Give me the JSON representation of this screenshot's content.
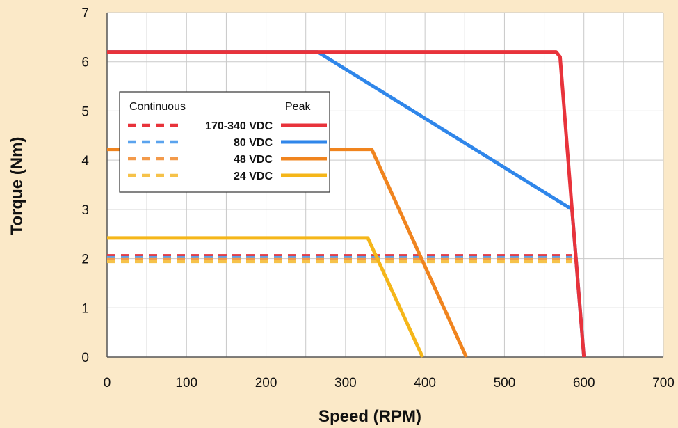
{
  "chart_data": {
    "type": "line",
    "xlabel": "Speed (RPM)",
    "ylabel": "Torque (Nm)",
    "xlim": [
      0,
      700
    ],
    "ylim": [
      0,
      7
    ],
    "x_ticks": [
      0,
      100,
      200,
      300,
      400,
      500,
      600,
      700
    ],
    "y_ticks": [
      0,
      1,
      2,
      3,
      4,
      5,
      6,
      7
    ],
    "grid": true,
    "legend": {
      "placement": "top-left",
      "continuous_header": "Continuous",
      "peak_header": "Peak"
    },
    "series": [
      {
        "name": "170-340 VDC",
        "kind": "peak",
        "color": "#e8333b",
        "points": [
          [
            0,
            6.2
          ],
          [
            565,
            6.2
          ],
          [
            570,
            6.1
          ],
          [
            585,
            3.0
          ],
          [
            600,
            0
          ]
        ]
      },
      {
        "name": "80 VDC",
        "kind": "peak",
        "color": "#2f86ea",
        "points": [
          [
            0,
            6.2
          ],
          [
            265,
            6.2
          ],
          [
            585,
            3.0
          ],
          [
            600,
            0
          ]
        ]
      },
      {
        "name": "48 VDC",
        "kind": "peak",
        "color": "#f0841e",
        "points": [
          [
            0,
            4.22
          ],
          [
            333,
            4.22
          ],
          [
            452,
            0
          ]
        ]
      },
      {
        "name": "24 VDC",
        "kind": "peak",
        "color": "#f5b619",
        "points": [
          [
            0,
            2.42
          ],
          [
            328,
            2.42
          ],
          [
            397,
            0
          ]
        ]
      },
      {
        "name": "170-340 VDC",
        "kind": "continuous",
        "color": "#e8333b",
        "points": [
          [
            0,
            2.06
          ],
          [
            585,
            2.06
          ]
        ]
      },
      {
        "name": "80 VDC",
        "kind": "continuous",
        "color": "#5aa3ee",
        "points": [
          [
            0,
            2.02
          ],
          [
            585,
            2.02
          ]
        ]
      },
      {
        "name": "48 VDC",
        "kind": "continuous",
        "color": "#f39a4a",
        "points": [
          [
            0,
            1.98
          ],
          [
            585,
            1.98
          ]
        ]
      },
      {
        "name": "24 VDC",
        "kind": "continuous",
        "color": "#f6c24a",
        "points": [
          [
            0,
            1.94
          ],
          [
            585,
            1.94
          ]
        ]
      }
    ]
  }
}
